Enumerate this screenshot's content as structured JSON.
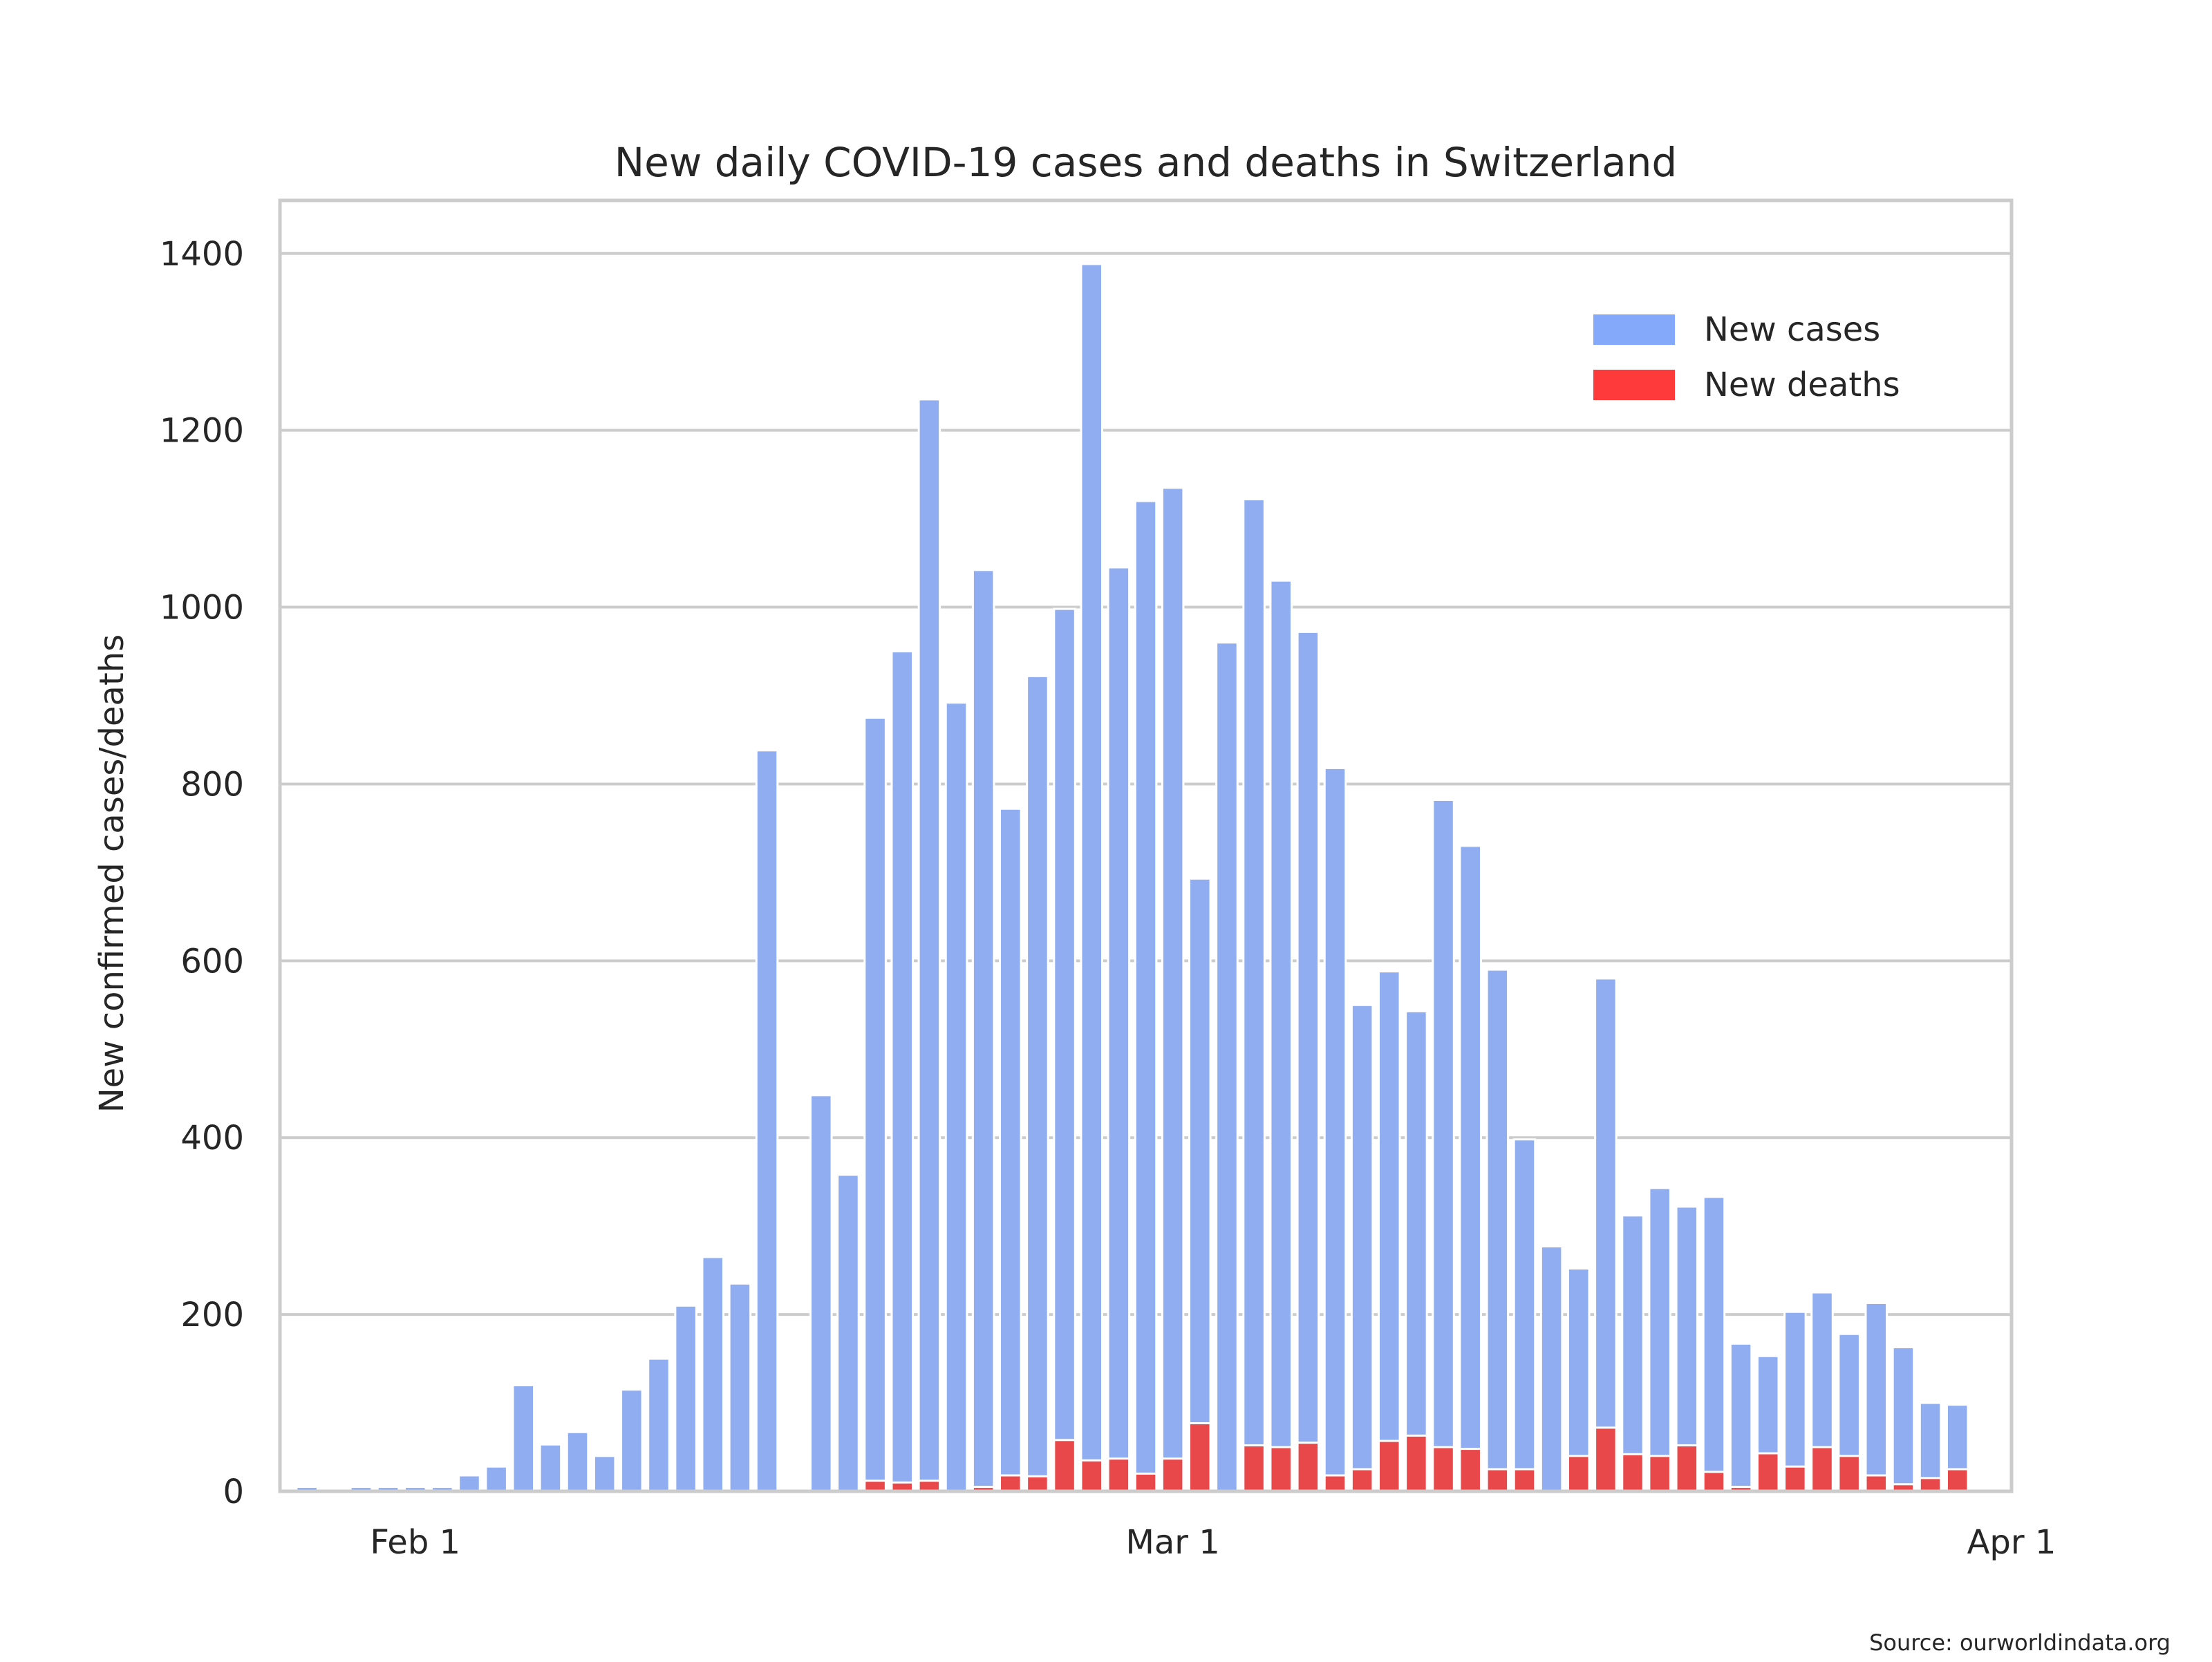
{
  "chart_data": {
    "type": "bar",
    "title": "New daily COVID-19 cases and deaths in Switzerland",
    "xlabel": "",
    "ylabel": "New confirmed cases/deaths",
    "ylim": [
      0,
      1460
    ],
    "yticks": [
      0,
      200,
      400,
      600,
      800,
      1000,
      1200,
      1400
    ],
    "x_start": "2021-01-28",
    "xlim": [
      "2021-01-27",
      "2021-04-01"
    ],
    "xtick_labels": [
      {
        "date": "2021-02-01",
        "label": "Feb 1"
      },
      {
        "date": "2021-03-01",
        "label": "Mar 1"
      },
      {
        "date": "2021-04-01",
        "label": "Apr 1"
      }
    ],
    "grid": true,
    "legend": "top-right",
    "series": [
      {
        "name": "New cases",
        "color": "#8fadf0",
        "legend_color": "#84a8fa",
        "values": [
          5,
          0,
          5,
          5,
          5,
          5,
          18,
          28,
          120,
          53,
          67,
          40,
          115,
          150,
          210,
          265,
          235,
          838,
          0,
          448,
          358,
          875,
          950,
          1235,
          892,
          1042,
          772,
          922,
          998,
          1388,
          1045,
          1120,
          1135,
          693,
          960,
          1122,
          1030,
          972,
          818,
          550,
          588,
          543,
          782,
          730,
          590,
          398,
          277,
          252,
          580,
          312,
          343,
          322,
          333,
          167,
          153,
          203,
          225,
          178,
          213,
          163,
          100,
          98
        ],
        "zero_overlay_color": "#5a8a4a"
      },
      {
        "name": "New deaths",
        "color": "#e8484a",
        "legend_color": "#ff3a3a",
        "values": [
          0,
          0,
          0,
          0,
          0,
          0,
          0,
          0,
          0,
          0,
          0,
          0,
          0,
          0,
          0,
          0,
          0,
          0,
          0,
          0,
          0,
          12,
          10,
          12,
          0,
          5,
          18,
          17,
          58,
          35,
          37,
          20,
          37,
          77,
          0,
          52,
          50,
          55,
          18,
          25,
          57,
          63,
          50,
          48,
          25,
          25,
          0,
          40,
          72,
          42,
          40,
          52,
          22,
          5,
          43,
          28,
          50,
          40,
          18,
          8,
          15,
          25
        ]
      }
    ],
    "source": "Source: ourworldindata.org"
  }
}
